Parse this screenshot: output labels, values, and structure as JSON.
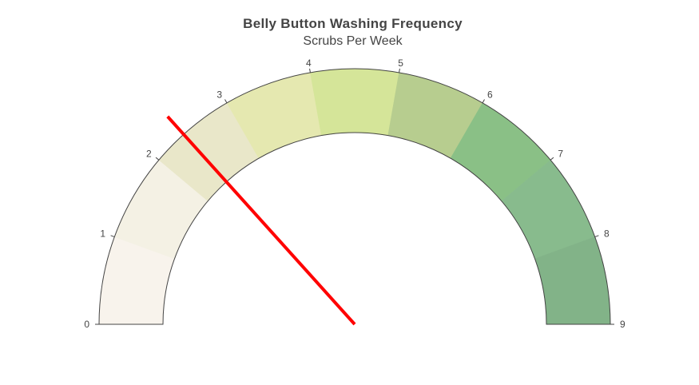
{
  "chart_data": {
    "type": "gauge",
    "title": "Belly Button Washing Frequency",
    "subtitle": "Scrubs Per Week",
    "range": [
      0,
      9
    ],
    "value": 2.4,
    "ticks": [
      "0",
      "1",
      "2",
      "3",
      "4",
      "5",
      "6",
      "7",
      "8",
      "9"
    ],
    "steps": [
      {
        "range": [
          0,
          1
        ],
        "color": "#f8f3ec"
      },
      {
        "range": [
          1,
          2
        ],
        "color": "#f4f1e4"
      },
      {
        "range": [
          2,
          3
        ],
        "color": "#e9e7c9"
      },
      {
        "range": [
          3,
          4
        ],
        "color": "#e5e8b0"
      },
      {
        "range": [
          4,
          5
        ],
        "color": "#d5e599"
      },
      {
        "range": [
          5,
          6
        ],
        "color": "#b7cd8f"
      },
      {
        "range": [
          6,
          7
        ],
        "color": "#8ac086"
      },
      {
        "range": [
          7,
          8
        ],
        "color": "#88bb8d"
      },
      {
        "range": [
          8,
          9
        ],
        "color": "#82b388"
      }
    ],
    "needle_color": "#ff0000",
    "outline_color": "#444444"
  }
}
